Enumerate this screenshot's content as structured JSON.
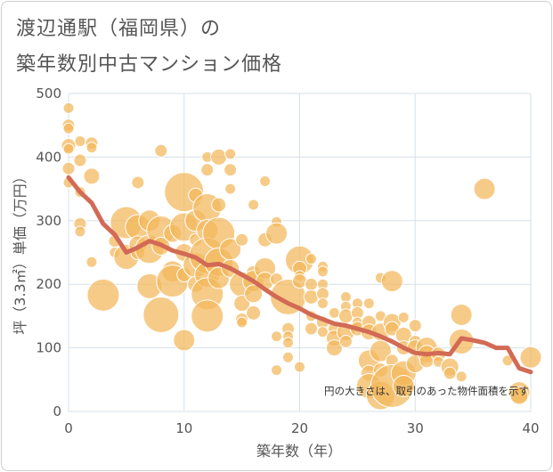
{
  "title_line1": "渡辺通駅（福岡県）の",
  "title_line2": "築年数別中古マンション価格",
  "chart_data": {
    "type": "scatter",
    "xlabel": "築年数（年）",
    "ylabel": "坪（3.3㎡）単価（万円）",
    "xlim": [
      0,
      40
    ],
    "ylim": [
      0,
      500
    ],
    "xticks": [
      "0",
      "10",
      "20",
      "30",
      "40"
    ],
    "yticks": [
      "0",
      "100",
      "200",
      "300",
      "400",
      "500"
    ],
    "grid": true,
    "annotation": "円の大きさは、取引のあった物件面積を示す",
    "colors": {
      "bubble": "#f3b75a",
      "bubble_edge": "#ffffff",
      "trend": "#d26a55",
      "grid": "#d6e0ea"
    },
    "points": [
      {
        "x": 0,
        "y": 477,
        "s": 6
      },
      {
        "x": 0,
        "y": 450,
        "s": 7
      },
      {
        "x": 0,
        "y": 445,
        "s": 6
      },
      {
        "x": 0,
        "y": 418,
        "s": 8
      },
      {
        "x": 0,
        "y": 413,
        "s": 6
      },
      {
        "x": 0,
        "y": 382,
        "s": 7
      },
      {
        "x": 0,
        "y": 360,
        "s": 6
      },
      {
        "x": 1,
        "y": 425,
        "s": 6
      },
      {
        "x": 1,
        "y": 395,
        "s": 7
      },
      {
        "x": 1,
        "y": 345,
        "s": 6
      },
      {
        "x": 1,
        "y": 295,
        "s": 7
      },
      {
        "x": 1,
        "y": 283,
        "s": 6
      },
      {
        "x": 2,
        "y": 422,
        "s": 7
      },
      {
        "x": 2,
        "y": 415,
        "s": 6
      },
      {
        "x": 2,
        "y": 370,
        "s": 9
      },
      {
        "x": 2,
        "y": 235,
        "s": 6
      },
      {
        "x": 3,
        "y": 183,
        "s": 18
      },
      {
        "x": 4,
        "y": 268,
        "s": 7
      },
      {
        "x": 4,
        "y": 250,
        "s": 6
      },
      {
        "x": 5,
        "y": 297,
        "s": 18
      },
      {
        "x": 5,
        "y": 243,
        "s": 14
      },
      {
        "x": 6,
        "y": 360,
        "s": 7
      },
      {
        "x": 6,
        "y": 290,
        "s": 14
      },
      {
        "x": 6,
        "y": 262,
        "s": 10
      },
      {
        "x": 6,
        "y": 250,
        "s": 8
      },
      {
        "x": 7,
        "y": 300,
        "s": 12
      },
      {
        "x": 7,
        "y": 255,
        "s": 16
      },
      {
        "x": 7,
        "y": 197,
        "s": 14
      },
      {
        "x": 8,
        "y": 410,
        "s": 7
      },
      {
        "x": 8,
        "y": 285,
        "s": 16
      },
      {
        "x": 8,
        "y": 260,
        "s": 10
      },
      {
        "x": 8,
        "y": 152,
        "s": 20
      },
      {
        "x": 9,
        "y": 220,
        "s": 12
      },
      {
        "x": 9,
        "y": 205,
        "s": 18
      },
      {
        "x": 9,
        "y": 280,
        "s": 10
      },
      {
        "x": 10,
        "y": 345,
        "s": 22
      },
      {
        "x": 10,
        "y": 290,
        "s": 16
      },
      {
        "x": 10,
        "y": 250,
        "s": 10
      },
      {
        "x": 10,
        "y": 215,
        "s": 8
      },
      {
        "x": 10,
        "y": 112,
        "s": 12
      },
      {
        "x": 11,
        "y": 340,
        "s": 8
      },
      {
        "x": 11,
        "y": 300,
        "s": 12
      },
      {
        "x": 11,
        "y": 270,
        "s": 7
      },
      {
        "x": 11,
        "y": 230,
        "s": 14
      },
      {
        "x": 11,
        "y": 200,
        "s": 9
      },
      {
        "x": 12,
        "y": 400,
        "s": 6
      },
      {
        "x": 12,
        "y": 380,
        "s": 7
      },
      {
        "x": 12,
        "y": 320,
        "s": 16
      },
      {
        "x": 12,
        "y": 285,
        "s": 12
      },
      {
        "x": 12,
        "y": 245,
        "s": 20
      },
      {
        "x": 12,
        "y": 215,
        "s": 14
      },
      {
        "x": 12,
        "y": 185,
        "s": 18
      },
      {
        "x": 12,
        "y": 150,
        "s": 18
      },
      {
        "x": 13,
        "y": 400,
        "s": 9
      },
      {
        "x": 13,
        "y": 325,
        "s": 8
      },
      {
        "x": 13,
        "y": 280,
        "s": 18
      },
      {
        "x": 13,
        "y": 235,
        "s": 16
      },
      {
        "x": 13,
        "y": 210,
        "s": 12
      },
      {
        "x": 14,
        "y": 405,
        "s": 6
      },
      {
        "x": 14,
        "y": 380,
        "s": 7
      },
      {
        "x": 14,
        "y": 350,
        "s": 6
      },
      {
        "x": 14,
        "y": 255,
        "s": 12
      },
      {
        "x": 14,
        "y": 225,
        "s": 10
      },
      {
        "x": 15,
        "y": 270,
        "s": 7
      },
      {
        "x": 15,
        "y": 200,
        "s": 14
      },
      {
        "x": 15,
        "y": 170,
        "s": 9
      },
      {
        "x": 15,
        "y": 145,
        "s": 7
      },
      {
        "x": 15,
        "y": 140,
        "s": 6
      },
      {
        "x": 16,
        "y": 325,
        "s": 6
      },
      {
        "x": 16,
        "y": 218,
        "s": 8
      },
      {
        "x": 16,
        "y": 205,
        "s": 12
      },
      {
        "x": 16,
        "y": 185,
        "s": 10
      },
      {
        "x": 16,
        "y": 155,
        "s": 8
      },
      {
        "x": 17,
        "y": 362,
        "s": 6
      },
      {
        "x": 17,
        "y": 270,
        "s": 8
      },
      {
        "x": 17,
        "y": 225,
        "s": 12
      },
      {
        "x": 17,
        "y": 205,
        "s": 10
      },
      {
        "x": 18,
        "y": 298,
        "s": 6
      },
      {
        "x": 18,
        "y": 280,
        "s": 12
      },
      {
        "x": 18,
        "y": 208,
        "s": 7
      },
      {
        "x": 18,
        "y": 118,
        "s": 6
      },
      {
        "x": 18,
        "y": 65,
        "s": 6
      },
      {
        "x": 19,
        "y": 180,
        "s": 20
      },
      {
        "x": 19,
        "y": 130,
        "s": 7
      },
      {
        "x": 19,
        "y": 118,
        "s": 6
      },
      {
        "x": 19,
        "y": 108,
        "s": 6
      },
      {
        "x": 19,
        "y": 85,
        "s": 6
      },
      {
        "x": 20,
        "y": 238,
        "s": 16
      },
      {
        "x": 20,
        "y": 225,
        "s": 8
      },
      {
        "x": 20,
        "y": 213,
        "s": 6
      },
      {
        "x": 20,
        "y": 205,
        "s": 8
      },
      {
        "x": 20,
        "y": 70,
        "s": 6
      },
      {
        "x": 21,
        "y": 240,
        "s": 6
      },
      {
        "x": 21,
        "y": 200,
        "s": 7
      },
      {
        "x": 21,
        "y": 180,
        "s": 8
      },
      {
        "x": 21,
        "y": 150,
        "s": 6
      },
      {
        "x": 21,
        "y": 130,
        "s": 7
      },
      {
        "x": 22,
        "y": 228,
        "s": 6
      },
      {
        "x": 22,
        "y": 220,
        "s": 6
      },
      {
        "x": 22,
        "y": 200,
        "s": 6
      },
      {
        "x": 22,
        "y": 185,
        "s": 7
      },
      {
        "x": 22,
        "y": 170,
        "s": 6
      },
      {
        "x": 22,
        "y": 140,
        "s": 7
      },
      {
        "x": 22,
        "y": 125,
        "s": 6
      },
      {
        "x": 23,
        "y": 155,
        "s": 6
      },
      {
        "x": 23,
        "y": 130,
        "s": 7
      },
      {
        "x": 23,
        "y": 115,
        "s": 9
      },
      {
        "x": 23,
        "y": 100,
        "s": 9
      },
      {
        "x": 24,
        "y": 180,
        "s": 6
      },
      {
        "x": 24,
        "y": 165,
        "s": 6
      },
      {
        "x": 24,
        "y": 150,
        "s": 8
      },
      {
        "x": 24,
        "y": 125,
        "s": 10
      },
      {
        "x": 24,
        "y": 110,
        "s": 7
      },
      {
        "x": 25,
        "y": 170,
        "s": 6
      },
      {
        "x": 25,
        "y": 155,
        "s": 7
      },
      {
        "x": 25,
        "y": 140,
        "s": 6
      },
      {
        "x": 25,
        "y": 130,
        "s": 8
      },
      {
        "x": 26,
        "y": 170,
        "s": 6
      },
      {
        "x": 26,
        "y": 140,
        "s": 8
      },
      {
        "x": 26,
        "y": 125,
        "s": 9
      },
      {
        "x": 26,
        "y": 80,
        "s": 12
      },
      {
        "x": 26,
        "y": 60,
        "s": 9
      },
      {
        "x": 26,
        "y": 40,
        "s": 14
      },
      {
        "x": 27,
        "y": 210,
        "s": 6
      },
      {
        "x": 27,
        "y": 150,
        "s": 6
      },
      {
        "x": 27,
        "y": 125,
        "s": 10
      },
      {
        "x": 27,
        "y": 95,
        "s": 12
      },
      {
        "x": 27,
        "y": 65,
        "s": 8
      },
      {
        "x": 27,
        "y": 25,
        "s": 16
      },
      {
        "x": 28,
        "y": 205,
        "s": 12
      },
      {
        "x": 28,
        "y": 140,
        "s": 10
      },
      {
        "x": 28,
        "y": 130,
        "s": 8
      },
      {
        "x": 28,
        "y": 80,
        "s": 7
      },
      {
        "x": 28,
        "y": 40,
        "s": 24
      },
      {
        "x": 29,
        "y": 148,
        "s": 6
      },
      {
        "x": 29,
        "y": 120,
        "s": 9
      },
      {
        "x": 29,
        "y": 100,
        "s": 8
      },
      {
        "x": 29,
        "y": 60,
        "s": 14
      },
      {
        "x": 29,
        "y": 40,
        "s": 12
      },
      {
        "x": 30,
        "y": 135,
        "s": 7
      },
      {
        "x": 30,
        "y": 110,
        "s": 7
      },
      {
        "x": 30,
        "y": 100,
        "s": 9
      },
      {
        "x": 30,
        "y": 75,
        "s": 10
      },
      {
        "x": 31,
        "y": 100,
        "s": 12
      },
      {
        "x": 31,
        "y": 90,
        "s": 10
      },
      {
        "x": 31,
        "y": 80,
        "s": 8
      },
      {
        "x": 32,
        "y": 90,
        "s": 8
      },
      {
        "x": 32,
        "y": 78,
        "s": 6
      },
      {
        "x": 33,
        "y": 70,
        "s": 10
      },
      {
        "x": 33,
        "y": 60,
        "s": 7
      },
      {
        "x": 34,
        "y": 152,
        "s": 12
      },
      {
        "x": 34,
        "y": 110,
        "s": 14
      },
      {
        "x": 34,
        "y": 55,
        "s": 6
      },
      {
        "x": 36,
        "y": 350,
        "s": 12
      },
      {
        "x": 38,
        "y": 80,
        "s": 6
      },
      {
        "x": 39,
        "y": 30,
        "s": 12
      },
      {
        "x": 39,
        "y": 25,
        "s": 10
      },
      {
        "x": 40,
        "y": 85,
        "s": 12
      }
    ],
    "trend": {
      "x": [
        0,
        1,
        2,
        3,
        4,
        5,
        6,
        7,
        8,
        9,
        10,
        11,
        12,
        13,
        14,
        15,
        16,
        17,
        18,
        19,
        20,
        21,
        22,
        23,
        24,
        25,
        26,
        27,
        28,
        29,
        30,
        31,
        32,
        33,
        34,
        35,
        36,
        37,
        38,
        39,
        40
      ],
      "y": [
        368,
        345,
        328,
        295,
        278,
        250,
        258,
        268,
        262,
        253,
        248,
        242,
        230,
        232,
        225,
        215,
        205,
        192,
        180,
        170,
        162,
        152,
        145,
        138,
        135,
        130,
        125,
        118,
        110,
        100,
        92,
        90,
        92,
        90,
        115,
        112,
        108,
        100,
        100,
        68,
        62
      ]
    }
  }
}
